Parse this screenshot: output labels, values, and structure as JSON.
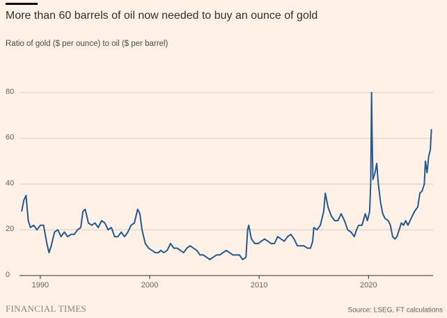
{
  "chart_data": {
    "type": "line",
    "title": "More than 60 barrels of oil now needed to buy an ounce of gold",
    "subtitle": "Ratio of gold ($ per ounce) to oil ($ per barrel)",
    "source": "Source: LSEG, FT calculations",
    "brand": "FINANCIAL TIMES",
    "xlim": [
      1988.1,
      2025.9
    ],
    "xticks": [
      1990,
      2000,
      2010,
      2020
    ],
    "ylim": [
      0,
      80
    ],
    "yticks": [
      0,
      20,
      40,
      60,
      80
    ],
    "grid": true,
    "series": [
      {
        "color": "#1f5a96",
        "x": [
          1988.3,
          1988.5,
          1988.7,
          1988.9,
          1989.1,
          1989.4,
          1989.7,
          1990.0,
          1990.3,
          1990.6,
          1990.8,
          1991.0,
          1991.3,
          1991.6,
          1991.9,
          1992.2,
          1992.5,
          1992.8,
          1993.1,
          1993.4,
          1993.7,
          1993.9,
          1994.1,
          1994.4,
          1994.7,
          1995.0,
          1995.3,
          1995.6,
          1995.9,
          1996.2,
          1996.5,
          1996.8,
          1997.1,
          1997.4,
          1997.7,
          1998.0,
          1998.3,
          1998.6,
          1998.9,
          1999.1,
          1999.3,
          1999.6,
          1999.9,
          2000.2,
          2000.5,
          2000.8,
          2001.0,
          2001.3,
          2001.6,
          2001.9,
          2002.2,
          2002.5,
          2002.8,
          2003.1,
          2003.4,
          2003.7,
          2004.0,
          2004.3,
          2004.6,
          2004.9,
          2005.2,
          2005.5,
          2005.8,
          2006.1,
          2006.4,
          2006.7,
          2007.0,
          2007.3,
          2007.6,
          2007.9,
          2008.2,
          2008.5,
          2008.8,
          2008.95,
          2009.05,
          2009.3,
          2009.6,
          2009.9,
          2010.2,
          2010.5,
          2010.8,
          2011.1,
          2011.4,
          2011.7,
          2012.0,
          2012.3,
          2012.6,
          2012.9,
          2013.2,
          2013.5,
          2013.8,
          2014.1,
          2014.4,
          2014.7,
          2014.9,
          2015.0,
          2015.3,
          2015.6,
          2015.9,
          2016.05,
          2016.3,
          2016.6,
          2016.9,
          2017.2,
          2017.5,
          2017.8,
          2018.1,
          2018.4,
          2018.7,
          2018.9,
          2019.1,
          2019.4,
          2019.7,
          2019.9,
          2020.1,
          2020.2,
          2020.28,
          2020.33,
          2020.4,
          2020.6,
          2020.75,
          2020.9,
          2021.1,
          2021.3,
          2021.5,
          2021.8,
          2022.0,
          2022.2,
          2022.4,
          2022.6,
          2022.8,
          2023.0,
          2023.2,
          2023.4,
          2023.6,
          2023.8,
          2024.0,
          2024.2,
          2024.5,
          2024.7,
          2024.9,
          2025.1,
          2025.2,
          2025.35,
          2025.5,
          2025.65,
          2025.75
        ],
        "values": [
          28,
          33,
          35,
          24,
          21,
          22,
          20,
          22,
          22,
          14,
          10,
          13,
          19,
          20,
          17,
          19,
          17,
          18,
          18,
          20,
          21,
          28,
          29,
          23,
          22,
          23,
          21,
          24,
          23,
          20,
          21,
          17,
          17,
          19,
          17,
          19,
          22,
          23,
          29,
          27,
          20,
          14,
          12,
          11,
          10,
          10,
          11,
          10,
          11,
          14,
          12,
          12,
          11,
          10,
          12,
          13,
          12,
          11,
          9,
          9,
          8,
          7,
          8,
          9,
          9,
          10,
          11,
          10,
          9,
          9,
          9,
          7,
          8,
          20,
          22,
          16,
          14,
          14,
          15,
          16,
          15,
          14,
          14,
          17,
          16,
          15,
          17,
          18,
          16,
          13,
          13,
          13,
          12,
          12,
          15,
          21,
          20,
          22,
          28,
          36,
          30,
          26,
          24,
          24,
          27,
          24,
          20,
          19,
          17,
          20,
          22,
          22,
          27,
          24,
          28,
          40,
          80,
          60,
          42,
          45,
          49,
          40,
          32,
          27,
          25,
          24,
          22,
          17,
          16,
          17,
          20,
          23,
          22,
          24,
          22,
          24,
          26,
          28,
          30,
          36,
          37,
          40,
          50,
          45,
          52,
          55,
          64
        ]
      }
    ]
  }
}
